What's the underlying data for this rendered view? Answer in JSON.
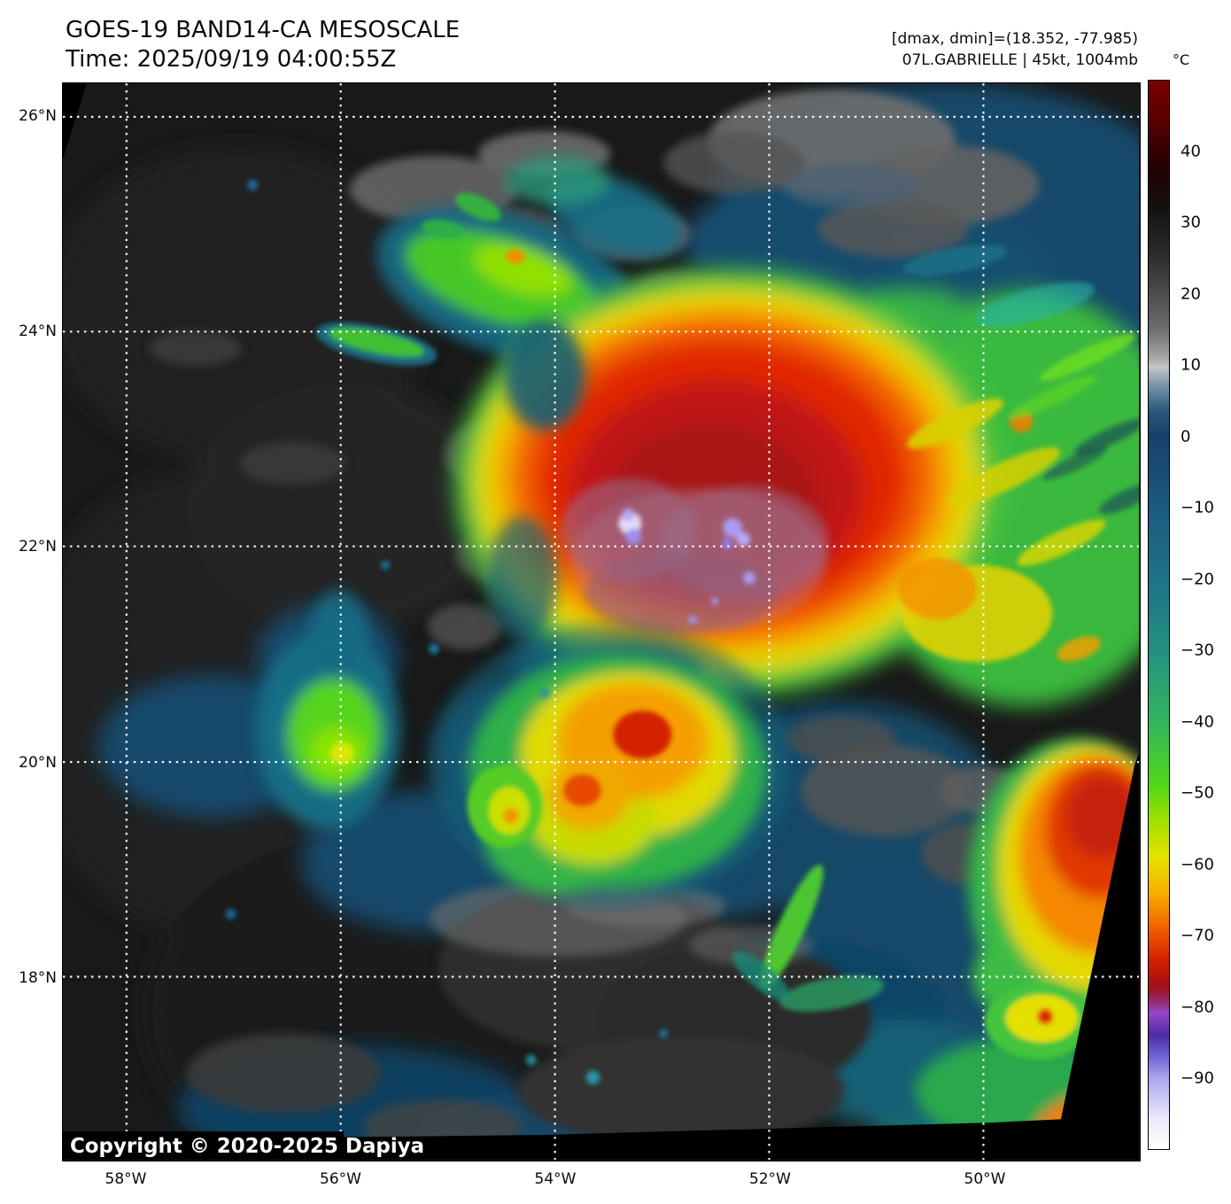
{
  "header": {
    "title": "GOES-19 BAND14-CA MESOSCALE",
    "time": "Time: 2025/09/19 04:00:55Z",
    "dmax_dmin": "[dmax, dmin]=(18.352, -77.985)",
    "storm": "07L.GABRIELLE | 45kt, 1004mb"
  },
  "map": {
    "copyright": "Copyright © 2020-2025 Dapiya"
  },
  "axes": {
    "lat_ticks": [
      {
        "label": "26°N",
        "deg": 26
      },
      {
        "label": "24°N",
        "deg": 24
      },
      {
        "label": "22°N",
        "deg": 22
      },
      {
        "label": "20°N",
        "deg": 20
      },
      {
        "label": "18°N",
        "deg": 18
      }
    ],
    "lon_ticks": [
      {
        "label": "58°W",
        "deg": 58
      },
      {
        "label": "56°W",
        "deg": 56
      },
      {
        "label": "54°W",
        "deg": 54
      },
      {
        "label": "52°W",
        "deg": 52
      },
      {
        "label": "50°W",
        "deg": 50
      }
    ]
  },
  "colorbar": {
    "unit": "°C",
    "ticks": [
      40,
      30,
      20,
      10,
      0,
      -10,
      -20,
      -30,
      -40,
      -50,
      -60,
      -70,
      -80,
      -90
    ],
    "value_range": [
      50,
      -100
    ]
  }
}
